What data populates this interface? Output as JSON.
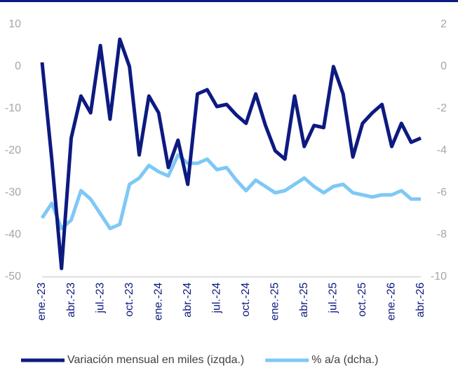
{
  "chart_data": {
    "type": "line",
    "categories": [
      "ene.-23",
      null,
      null,
      "abr.-23",
      null,
      null,
      "jul.-23",
      null,
      null,
      "oct.-23",
      null,
      null,
      "ene.-24",
      null,
      null,
      "abr.-24",
      null,
      null,
      "jul.-24",
      null,
      null,
      "oct.-24",
      null,
      null,
      "ene.-25",
      null,
      null,
      "abr.-25",
      null,
      null,
      "jul.-25",
      null,
      null,
      "oct.-25",
      null,
      null,
      "ene.-26",
      null,
      null,
      "abr.-26"
    ],
    "series": [
      {
        "name": "Variación mensual en miles (izqda.)",
        "color": "#0d1a80",
        "axis": "y",
        "values": [
          1,
          -22,
          -48,
          -17,
          -7,
          -11,
          5,
          -12.5,
          6.5,
          0,
          -21,
          -7,
          -11,
          -24,
          -17.5,
          -28,
          -6.5,
          -5.5,
          -9.5,
          -9,
          -11.5,
          -13.5,
          -6.5,
          -14,
          -20,
          -22,
          -7,
          -19,
          -14,
          -14.5,
          0,
          -6.5,
          -21.5,
          -13.5,
          -11,
          -9,
          -19,
          -13.5,
          -18,
          -17
        ]
      },
      {
        "name": "% a/a (dcha.)",
        "color": "#7ec8f5",
        "axis": "y2",
        "values": [
          -7.2,
          -6.5,
          -7.7,
          -7.3,
          -5.9,
          -6.3,
          -7.0,
          -7.7,
          -7.5,
          -5.6,
          -5.3,
          -4.7,
          -5.0,
          -5.2,
          -4.2,
          -4.6,
          -4.6,
          -4.4,
          -4.9,
          -4.8,
          -5.4,
          -5.9,
          -5.4,
          -5.7,
          -6.0,
          -5.9,
          -5.6,
          -5.3,
          -5.7,
          -6.0,
          -5.7,
          -5.6,
          -6.0,
          -6.1,
          -6.2,
          -6.1,
          -6.1,
          -5.9,
          -6.3,
          -6.3
        ]
      }
    ],
    "ylim": [
      -50,
      10
    ],
    "yticks": [
      -50,
      -40,
      -30,
      -20,
      -10,
      0,
      10
    ],
    "y2lim": [
      -10,
      2
    ],
    "y2ticks": [
      -10,
      -8,
      -6,
      -4,
      -2,
      0,
      2
    ],
    "grid": false,
    "legend": "bottom"
  }
}
